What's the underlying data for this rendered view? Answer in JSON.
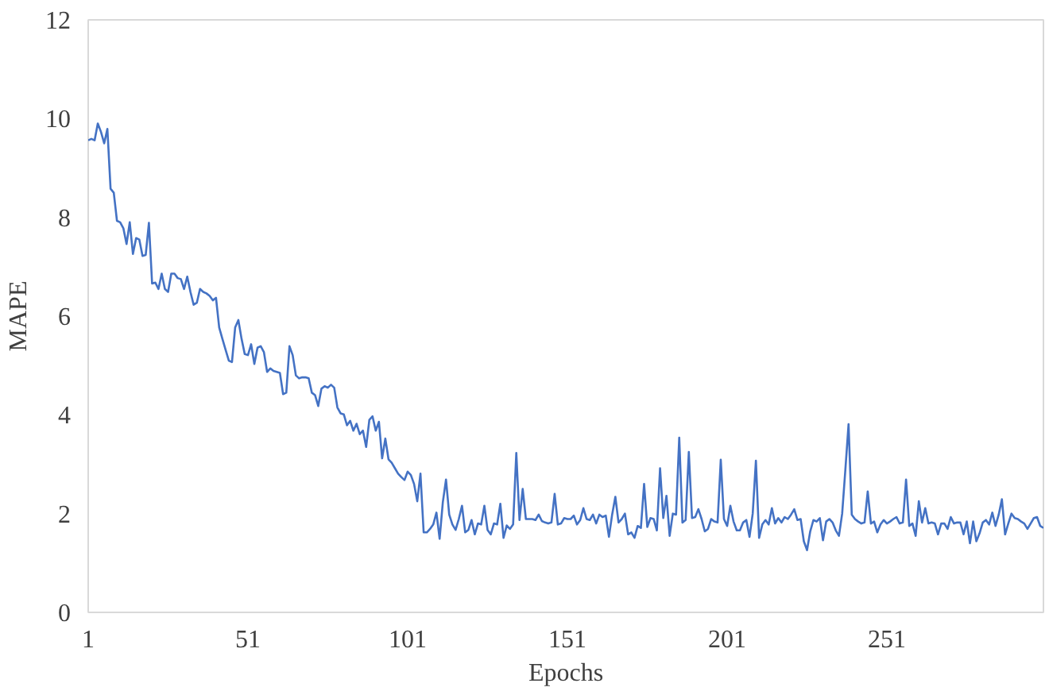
{
  "chart_data": {
    "type": "line",
    "xlabel": "Epochs",
    "ylabel": "MAPE",
    "xlim": [
      1,
      300
    ],
    "xticks": [
      1,
      51,
      101,
      151,
      201,
      251
    ],
    "ylim": [
      0,
      12
    ],
    "yticks": [
      0,
      2,
      4,
      6,
      8,
      10,
      12
    ],
    "grid": false,
    "marker": "none",
    "line_style": "solid",
    "series": [
      {
        "color": "#4472c4",
        "x": [
          1,
          2,
          3,
          4,
          5,
          6,
          7,
          8,
          9,
          10,
          11,
          12,
          13,
          14,
          15,
          16,
          17,
          18,
          19,
          20,
          21,
          22,
          23,
          24,
          25,
          26,
          27,
          28,
          29,
          30,
          31,
          32,
          33,
          34,
          35,
          36,
          37,
          38,
          39,
          40,
          41,
          42,
          43,
          44,
          45,
          46,
          47,
          48,
          49,
          50,
          51,
          52,
          53,
          54,
          55,
          56,
          57,
          58,
          59,
          60,
          61,
          62,
          63,
          64,
          65,
          66,
          67,
          68,
          69,
          70,
          71,
          72,
          73,
          74,
          75,
          76,
          77,
          78,
          79,
          80,
          81,
          82,
          83,
          84,
          85,
          86,
          87,
          88,
          89,
          90,
          91,
          92,
          93,
          94,
          95,
          96,
          97,
          98,
          99,
          100,
          101,
          102,
          103,
          104,
          105,
          106,
          107,
          108,
          109,
          110,
          111,
          112,
          113,
          114,
          115,
          116,
          117,
          118,
          119,
          120,
          121,
          122,
          123,
          124,
          125,
          126,
          127,
          128,
          129,
          130,
          131,
          132,
          133,
          134,
          135,
          136,
          137,
          138,
          139,
          140,
          141,
          142,
          143,
          144,
          145,
          146,
          147,
          148,
          149,
          150,
          151,
          152,
          153,
          154,
          155,
          156,
          157,
          158,
          159,
          160,
          161,
          162,
          163,
          164,
          165,
          166,
          167,
          168,
          169,
          170,
          171,
          172,
          173,
          174,
          175,
          176,
          177,
          178,
          179,
          180,
          181,
          182,
          183,
          184,
          185,
          186,
          187,
          188,
          189,
          190,
          191,
          192,
          193,
          194,
          195,
          196,
          197,
          198,
          199,
          200,
          201,
          202,
          203,
          204,
          205,
          206,
          207,
          208,
          209,
          210,
          211,
          212,
          213,
          214,
          215,
          216,
          217,
          218,
          219,
          220,
          221,
          222,
          223,
          224,
          225,
          226,
          227,
          228,
          229,
          230,
          231,
          232,
          233,
          234,
          235,
          236,
          237,
          238,
          239,
          240,
          241,
          242,
          243,
          244,
          245,
          246,
          247,
          248,
          249,
          250,
          251,
          252,
          253,
          254,
          255,
          256,
          257,
          258,
          259,
          260,
          261,
          262,
          263,
          264,
          265,
          266,
          267,
          268,
          269,
          270,
          271,
          272,
          273,
          274,
          275,
          276,
          277,
          278,
          279,
          280,
          281,
          282,
          283,
          284,
          285,
          286,
          287,
          288,
          289,
          290,
          291,
          292,
          293,
          294,
          295,
          296,
          297,
          298,
          299,
          300
        ],
        "values": [
          9.56,
          9.59,
          9.56,
          9.9,
          9.73,
          9.5,
          9.79,
          8.58,
          8.5,
          7.93,
          7.9,
          7.78,
          7.46,
          7.9,
          7.26,
          7.58,
          7.55,
          7.22,
          7.24,
          7.89,
          6.66,
          6.68,
          6.55,
          6.86,
          6.55,
          6.49,
          6.86,
          6.86,
          6.77,
          6.75,
          6.55,
          6.8,
          6.49,
          6.23,
          6.27,
          6.55,
          6.49,
          6.46,
          6.41,
          6.32,
          6.37,
          5.77,
          5.54,
          5.32,
          5.1,
          5.07,
          5.77,
          5.92,
          5.54,
          5.23,
          5.21,
          5.43,
          5.03,
          5.36,
          5.39,
          5.27,
          4.87,
          4.94,
          4.89,
          4.87,
          4.85,
          4.42,
          4.45,
          5.39,
          5.21,
          4.8,
          4.74,
          4.76,
          4.76,
          4.74,
          4.45,
          4.4,
          4.18,
          4.53,
          4.58,
          4.55,
          4.61,
          4.55,
          4.15,
          4.03,
          4.01,
          3.79,
          3.88,
          3.68,
          3.82,
          3.61,
          3.68,
          3.35,
          3.9,
          3.97,
          3.68,
          3.86,
          3.12,
          3.52,
          3.1,
          3.03,
          2.92,
          2.81,
          2.74,
          2.68,
          2.85,
          2.78,
          2.6,
          2.25,
          2.81,
          1.62,
          1.62,
          1.69,
          1.78,
          2.02,
          1.49,
          2.23,
          2.69,
          1.98,
          1.78,
          1.67,
          1.89,
          2.16,
          1.62,
          1.67,
          1.87,
          1.58,
          1.8,
          1.78,
          2.16,
          1.67,
          1.58,
          1.8,
          1.78,
          2.2,
          1.51,
          1.76,
          1.69,
          1.78,
          3.23,
          1.87,
          2.5,
          1.89,
          1.89,
          1.89,
          1.87,
          1.98,
          1.85,
          1.82,
          1.8,
          1.82,
          2.4,
          1.78,
          1.8,
          1.91,
          1.89,
          1.89,
          1.96,
          1.78,
          1.87,
          2.11,
          1.89,
          1.87,
          1.98,
          1.8,
          1.98,
          1.93,
          1.96,
          1.53,
          1.98,
          2.34,
          1.82,
          1.89,
          2.0,
          1.58,
          1.62,
          1.51,
          1.75,
          1.71,
          2.6,
          1.73,
          1.91,
          1.89,
          1.66,
          2.92,
          1.91,
          2.36,
          1.55,
          2.0,
          1.98,
          3.54,
          1.82,
          1.87,
          3.25,
          1.91,
          1.93,
          2.09,
          1.89,
          1.64,
          1.69,
          1.89,
          1.84,
          1.82,
          3.09,
          1.89,
          1.75,
          2.16,
          1.84,
          1.66,
          1.66,
          1.82,
          1.87,
          1.53,
          2.0,
          3.07,
          1.51,
          1.78,
          1.87,
          1.78,
          2.11,
          1.8,
          1.91,
          1.82,
          1.93,
          1.89,
          1.98,
          2.09,
          1.87,
          1.89,
          1.44,
          1.26,
          1.64,
          1.87,
          1.84,
          1.91,
          1.46,
          1.84,
          1.89,
          1.82,
          1.66,
          1.55,
          2.0,
          2.89,
          3.81,
          1.98,
          1.89,
          1.84,
          1.8,
          1.82,
          2.45,
          1.8,
          1.84,
          1.62,
          1.78,
          1.87,
          1.8,
          1.84,
          1.89,
          1.93,
          1.8,
          1.82,
          2.69,
          1.75,
          1.8,
          1.55,
          2.25,
          1.82,
          2.11,
          1.8,
          1.82,
          1.8,
          1.58,
          1.8,
          1.8,
          1.69,
          1.93,
          1.8,
          1.82,
          1.82,
          1.58,
          1.84,
          1.4,
          1.84,
          1.44,
          1.6,
          1.82,
          1.87,
          1.78,
          2.02,
          1.75,
          1.98,
          2.29,
          1.58,
          1.8,
          2.0,
          1.91,
          1.89,
          1.84,
          1.8,
          1.69,
          1.8,
          1.91,
          1.93,
          1.75,
          1.71
        ]
      }
    ]
  }
}
